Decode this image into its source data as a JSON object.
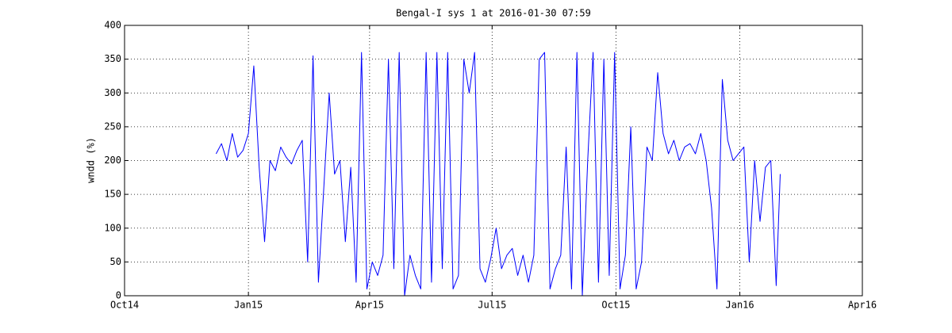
{
  "chart_data": {
    "type": "line",
    "title": "Bengal-I sys 1 at 2016-01-30 07:59",
    "y_label": "wndd (%)",
    "color": "#0000ff",
    "grid": true,
    "xlim": [
      735873,
      736421
    ],
    "xticks": [
      {
        "value": 735873,
        "label": "Oct14"
      },
      {
        "value": 735965,
        "label": "Jan15"
      },
      {
        "value": 736055,
        "label": "Apr15"
      },
      {
        "value": 736146,
        "label": "Jul15"
      },
      {
        "value": 736238,
        "label": "Oct15"
      },
      {
        "value": 736330,
        "label": "Jan16"
      },
      {
        "value": 736421,
        "label": "Apr16"
      }
    ],
    "ylim": [
      0,
      400
    ],
    "yticks": [
      0,
      50,
      100,
      150,
      200,
      250,
      300,
      350,
      400
    ],
    "x": [
      735941,
      735945,
      735949,
      735953,
      735957,
      735961,
      735965,
      735969,
      735973,
      735977,
      735981,
      735985,
      735989,
      735993,
      735997,
      736001,
      736005,
      736009,
      736013,
      736017,
      736021,
      736025,
      736029,
      736033,
      736037,
      736041,
      736045,
      736049,
      736053,
      736057,
      736061,
      736065,
      736069,
      736073,
      736077,
      736081,
      736085,
      736089,
      736093,
      736097,
      736101,
      736105,
      736109,
      736113,
      736117,
      736121,
      736125,
      736129,
      736133,
      736137,
      736141,
      736145,
      736149,
      736153,
      736157,
      736161,
      736165,
      736169,
      736173,
      736177,
      736181,
      736185,
      736189,
      736193,
      736197,
      736201,
      736205,
      736209,
      736213,
      736217,
      736221,
      736225,
      736229,
      736233,
      736237,
      736241,
      736245,
      736249,
      736253,
      736257,
      736261,
      736265,
      736269,
      736273,
      736277,
      736281,
      736285,
      736289,
      736293,
      736297,
      736301,
      736305,
      736309,
      736313,
      736317,
      736321,
      736325,
      736329,
      736333,
      736337,
      736341,
      736345,
      736349,
      736353,
      736357,
      736360
    ],
    "values": [
      210,
      225,
      200,
      240,
      205,
      215,
      240,
      340,
      190,
      80,
      200,
      185,
      220,
      205,
      195,
      215,
      230,
      50,
      355,
      20,
      160,
      300,
      180,
      200,
      80,
      190,
      20,
      360,
      10,
      50,
      30,
      60,
      350,
      40,
      360,
      0,
      60,
      30,
      10,
      360,
      20,
      360,
      40,
      360,
      10,
      30,
      350,
      300,
      360,
      40,
      20,
      55,
      100,
      40,
      60,
      70,
      30,
      60,
      20,
      60,
      350,
      360,
      10,
      40,
      60,
      220,
      10,
      360,
      0,
      200,
      360,
      20,
      350,
      30,
      360,
      10,
      60,
      250,
      10,
      50,
      220,
      200,
      330,
      240,
      210,
      230,
      200,
      220,
      225,
      210,
      240,
      200,
      130,
      10,
      320,
      230,
      200,
      210,
      220,
      50,
      200,
      110,
      190,
      200,
      15,
      180
    ]
  }
}
